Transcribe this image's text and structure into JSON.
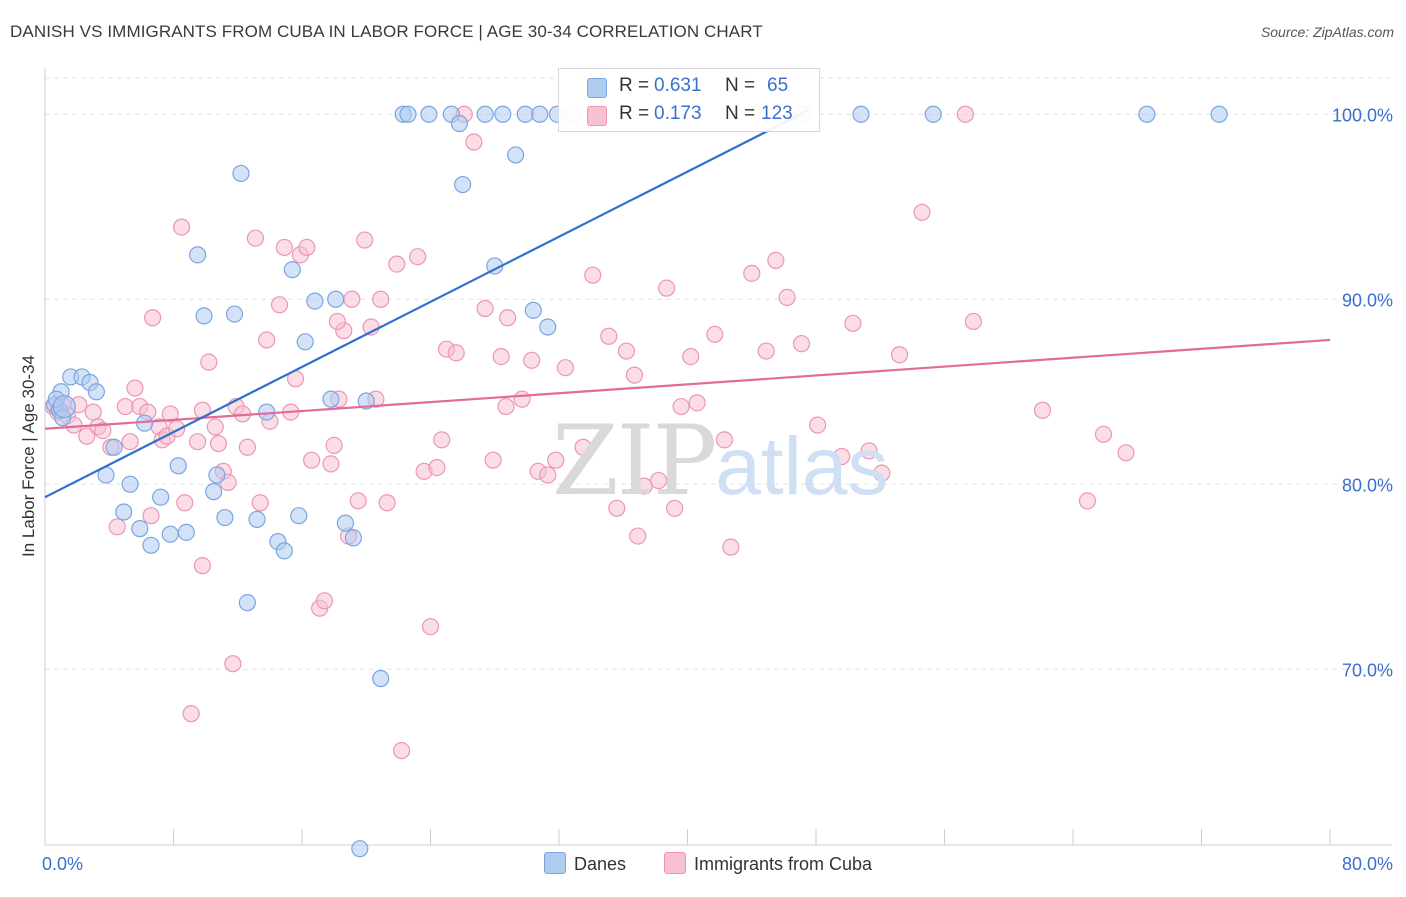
{
  "header": {
    "title": "DANISH VS IMMIGRANTS FROM CUBA IN LABOR FORCE | AGE 30-34 CORRELATION CHART",
    "source": "Source: ZipAtlas.com"
  },
  "watermark": {
    "zip": "ZIP",
    "atlas": "atlas"
  },
  "legend": {
    "danes": {
      "r_label": "R =",
      "r_value": "0.631",
      "n_label": "N =",
      "n_value": "65"
    },
    "cuba": {
      "r_label": "R =",
      "r_value": "0.173",
      "n_label": "N =",
      "n_value": "123"
    }
  },
  "bottom_legend": {
    "danes": "Danes",
    "cuba": "Immigrants from Cuba"
  },
  "colors": {
    "danes_fill": "#aecbf0",
    "danes_stroke": "#7aa6e0",
    "danes_line": "#2f6fcf",
    "cuba_fill": "#f7c1d2",
    "cuba_stroke": "#ec96b4",
    "cuba_line": "#e26b97",
    "axis_text": "#3a6fcf",
    "grid": "#e3e3e3"
  },
  "chart_data": {
    "type": "scatter",
    "title": "DANISH VS IMMIGRANTS FROM CUBA IN LABOR FORCE | AGE 30-34 CORRELATION CHART",
    "xlabel": "",
    "ylabel": "In Labor Force | Age 30-34",
    "xlim": [
      0,
      80
    ],
    "ylim": [
      60.5,
      102.5
    ],
    "x_tick_labels": [
      "0.0%",
      "80.0%"
    ],
    "y_ticks": [
      70,
      80,
      90,
      100
    ],
    "y_tick_labels": [
      "70.0%",
      "80.0%",
      "90.0%",
      "100.0%"
    ],
    "legend_position": "top-center",
    "series": [
      {
        "name": "Danes",
        "r": 0.631,
        "n": 65,
        "trend": {
          "x": [
            0,
            47.5
          ],
          "y": [
            79.3,
            100.2
          ]
        },
        "points": [
          [
            0.6,
            84.3
          ],
          [
            0.9,
            84.0
          ],
          [
            1.0,
            85.0
          ],
          [
            0.7,
            84.6
          ],
          [
            1.1,
            83.6
          ],
          [
            1.6,
            85.8
          ],
          [
            2.3,
            85.8
          ],
          [
            2.8,
            85.5
          ],
          [
            3.2,
            85.0
          ],
          [
            3.8,
            80.5
          ],
          [
            4.3,
            82.0
          ],
          [
            4.9,
            78.5
          ],
          [
            5.3,
            80.0
          ],
          [
            5.9,
            77.6
          ],
          [
            6.2,
            83.3
          ],
          [
            6.6,
            76.7
          ],
          [
            7.2,
            79.3
          ],
          [
            7.8,
            77.3
          ],
          [
            8.3,
            81.0
          ],
          [
            8.8,
            77.4
          ],
          [
            9.5,
            92.4
          ],
          [
            9.9,
            89.1
          ],
          [
            10.5,
            79.6
          ],
          [
            10.7,
            80.5
          ],
          [
            11.2,
            78.2
          ],
          [
            11.8,
            89.2
          ],
          [
            12.2,
            96.8
          ],
          [
            12.6,
            73.6
          ],
          [
            13.2,
            78.1
          ],
          [
            13.8,
            83.9
          ],
          [
            14.5,
            76.9
          ],
          [
            14.9,
            76.4
          ],
          [
            15.4,
            91.6
          ],
          [
            15.8,
            78.3
          ],
          [
            16.2,
            87.7
          ],
          [
            16.8,
            89.9
          ],
          [
            17.8,
            84.6
          ],
          [
            18.1,
            90.0
          ],
          [
            18.7,
            77.9
          ],
          [
            19.2,
            77.1
          ],
          [
            20.0,
            84.5
          ],
          [
            20.9,
            69.5
          ],
          [
            22.3,
            100.0
          ],
          [
            22.6,
            100.0
          ],
          [
            23.9,
            100.0
          ],
          [
            25.3,
            100.0
          ],
          [
            25.8,
            99.5
          ],
          [
            26.0,
            96.2
          ],
          [
            27.4,
            100.0
          ],
          [
            28.0,
            91.8
          ],
          [
            28.5,
            100.0
          ],
          [
            29.3,
            97.8
          ],
          [
            29.9,
            100.0
          ],
          [
            30.4,
            89.4
          ],
          [
            30.8,
            100.0
          ],
          [
            31.3,
            88.5
          ],
          [
            31.9,
            100.0
          ],
          [
            39.3,
            100.0
          ],
          [
            47.2,
            100.0
          ],
          [
            50.8,
            100.0
          ],
          [
            55.3,
            100.0
          ],
          [
            68.6,
            100.0
          ],
          [
            73.1,
            100.0
          ],
          [
            19.6,
            60.3
          ],
          [
            1.2,
            84.2
          ]
        ]
      },
      {
        "name": "Immigrants from Cuba",
        "r": 0.173,
        "n": 123,
        "trend": {
          "x": [
            0,
            80
          ],
          "y": [
            83.0,
            87.8
          ]
        },
        "points": [
          [
            0.5,
            84.2
          ],
          [
            0.8,
            83.9
          ],
          [
            1.1,
            84.3
          ],
          [
            1.4,
            83.7
          ],
          [
            1.8,
            83.2
          ],
          [
            2.1,
            84.3
          ],
          [
            2.6,
            82.6
          ],
          [
            3.0,
            83.9
          ],
          [
            3.3,
            83.1
          ],
          [
            3.6,
            82.9
          ],
          [
            4.1,
            82.0
          ],
          [
            4.5,
            77.7
          ],
          [
            5.0,
            84.2
          ],
          [
            5.3,
            82.3
          ],
          [
            5.6,
            85.2
          ],
          [
            5.9,
            84.2
          ],
          [
            6.4,
            83.9
          ],
          [
            6.7,
            89.0
          ],
          [
            7.1,
            83.1
          ],
          [
            7.3,
            82.4
          ],
          [
            7.6,
            82.6
          ],
          [
            7.8,
            83.8
          ],
          [
            8.2,
            83.0
          ],
          [
            8.5,
            93.9
          ],
          [
            8.7,
            79.0
          ],
          [
            9.1,
            67.6
          ],
          [
            9.5,
            82.3
          ],
          [
            9.8,
            75.6
          ],
          [
            10.2,
            86.6
          ],
          [
            10.6,
            83.1
          ],
          [
            10.8,
            82.2
          ],
          [
            11.1,
            80.7
          ],
          [
            11.4,
            80.1
          ],
          [
            11.7,
            70.3
          ],
          [
            11.9,
            84.2
          ],
          [
            12.3,
            83.8
          ],
          [
            12.6,
            82.0
          ],
          [
            13.1,
            93.3
          ],
          [
            13.4,
            79.0
          ],
          [
            13.8,
            87.8
          ],
          [
            14.0,
            83.4
          ],
          [
            14.6,
            89.7
          ],
          [
            14.9,
            92.8
          ],
          [
            15.3,
            83.9
          ],
          [
            15.6,
            85.7
          ],
          [
            15.9,
            92.4
          ],
          [
            16.3,
            92.8
          ],
          [
            16.6,
            81.3
          ],
          [
            17.1,
            73.3
          ],
          [
            17.4,
            73.7
          ],
          [
            17.8,
            81.1
          ],
          [
            18.0,
            82.1
          ],
          [
            18.3,
            84.6
          ],
          [
            18.6,
            88.3
          ],
          [
            18.9,
            77.2
          ],
          [
            19.1,
            90.0
          ],
          [
            19.5,
            79.1
          ],
          [
            19.9,
            93.2
          ],
          [
            20.3,
            88.5
          ],
          [
            20.6,
            84.6
          ],
          [
            20.9,
            90.0
          ],
          [
            21.3,
            79.0
          ],
          [
            21.9,
            91.9
          ],
          [
            22.2,
            65.6
          ],
          [
            23.2,
            92.3
          ],
          [
            23.6,
            80.7
          ],
          [
            24.0,
            72.3
          ],
          [
            24.4,
            80.9
          ],
          [
            24.7,
            82.4
          ],
          [
            25.0,
            87.3
          ],
          [
            25.6,
            87.1
          ],
          [
            26.1,
            100.0
          ],
          [
            26.7,
            98.5
          ],
          [
            27.4,
            89.5
          ],
          [
            27.9,
            81.3
          ],
          [
            28.4,
            86.9
          ],
          [
            28.8,
            89.0
          ],
          [
            29.7,
            84.6
          ],
          [
            30.3,
            86.7
          ],
          [
            30.7,
            80.7
          ],
          [
            31.3,
            80.5
          ],
          [
            31.8,
            81.3
          ],
          [
            32.4,
            86.3
          ],
          [
            32.9,
            100.0
          ],
          [
            34.1,
            91.3
          ],
          [
            35.1,
            88.0
          ],
          [
            35.6,
            78.7
          ],
          [
            36.2,
            87.2
          ],
          [
            36.7,
            85.9
          ],
          [
            36.9,
            77.2
          ],
          [
            37.3,
            79.9
          ],
          [
            38.2,
            80.2
          ],
          [
            38.7,
            90.6
          ],
          [
            39.2,
            78.7
          ],
          [
            39.6,
            84.2
          ],
          [
            40.2,
            86.9
          ],
          [
            40.6,
            84.4
          ],
          [
            41.7,
            88.1
          ],
          [
            42.3,
            82.4
          ],
          [
            42.7,
            76.6
          ],
          [
            44.0,
            91.4
          ],
          [
            44.9,
            87.2
          ],
          [
            45.5,
            92.1
          ],
          [
            46.2,
            90.1
          ],
          [
            47.1,
            87.6
          ],
          [
            48.1,
            83.2
          ],
          [
            49.6,
            81.5
          ],
          [
            50.3,
            88.7
          ],
          [
            51.3,
            81.8
          ],
          [
            52.1,
            80.6
          ],
          [
            53.2,
            87.0
          ],
          [
            54.6,
            94.7
          ],
          [
            57.3,
            100.0
          ],
          [
            57.8,
            88.8
          ],
          [
            62.1,
            84.0
          ],
          [
            64.9,
            79.1
          ],
          [
            65.9,
            82.7
          ],
          [
            67.3,
            81.7
          ],
          [
            18.2,
            88.8
          ],
          [
            9.8,
            84.0
          ],
          [
            28.7,
            84.2
          ],
          [
            6.6,
            78.3
          ],
          [
            33.5,
            82.0
          ]
        ]
      }
    ]
  }
}
